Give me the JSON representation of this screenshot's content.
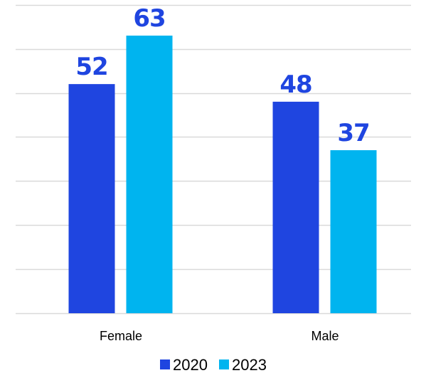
{
  "chart_data": {
    "type": "bar",
    "categories": [
      "Female",
      "Male"
    ],
    "series": [
      {
        "name": "2020",
        "values": [
          52,
          48
        ],
        "color": "#1f45e0"
      },
      {
        "name": "2023",
        "values": [
          63,
          37
        ],
        "color": "#00b4ef"
      }
    ],
    "ylim": [
      0,
      70
    ],
    "grid": true,
    "legend": "bottom",
    "data_labels": true,
    "label_color": "#1f45e0"
  }
}
